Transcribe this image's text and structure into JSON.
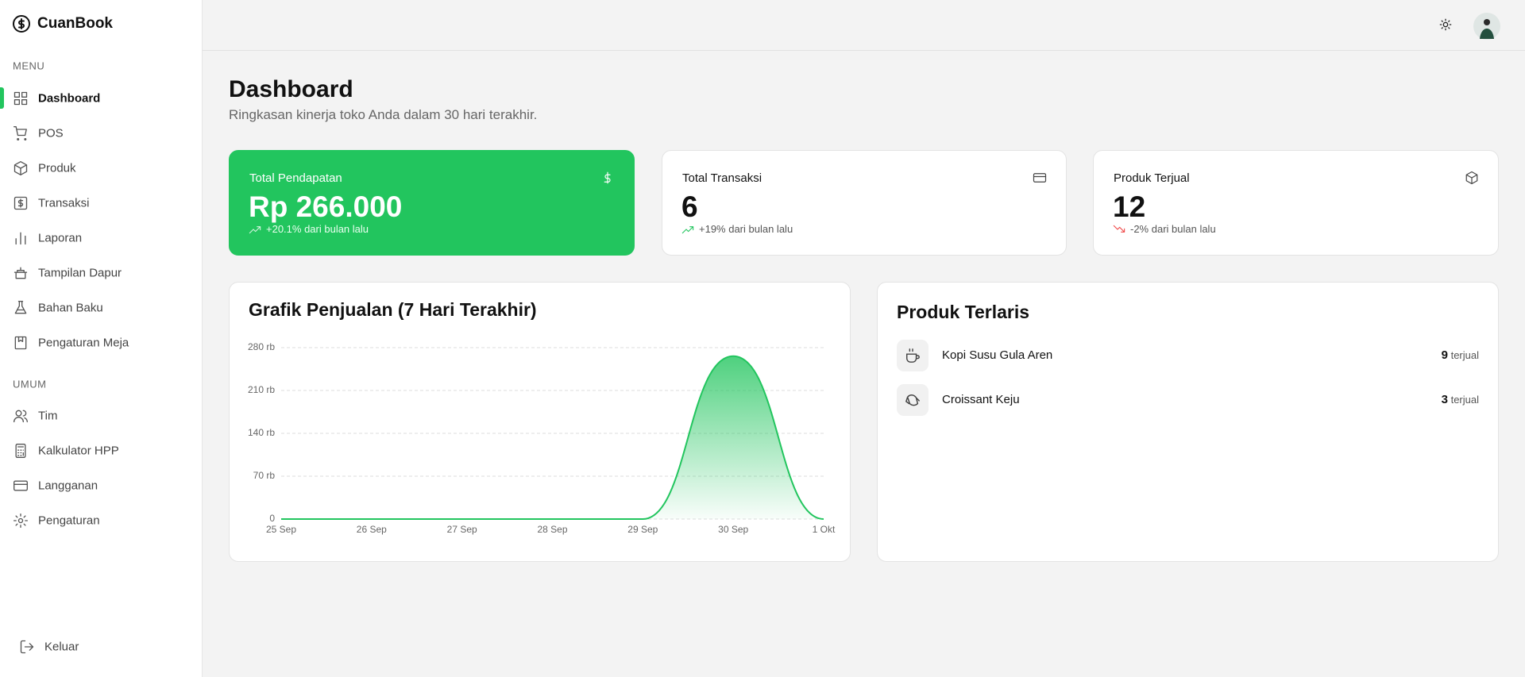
{
  "sidebar": {
    "brand": "CuanBook",
    "menu_heading": "MENU",
    "menu": [
      "Dashboard",
      "POS",
      "Produk",
      "Transaksi",
      "Laporan",
      "Tampilan Dapur",
      "Bahan Baku",
      "Pengaturan Meja"
    ],
    "general_heading": "UMUM",
    "general": [
      "Tim",
      "Kalkulator HPP",
      "Langganan",
      "Pengaturan"
    ],
    "logout": "Keluar"
  },
  "page": {
    "title": "Dashboard",
    "subtitle": "Ringkasan kinerja toko Anda dalam 30 hari terakhir."
  },
  "stats": [
    {
      "label": "Total Pendapatan",
      "value": "Rp 266.000",
      "change": "+20.1% dari bulan lalu"
    },
    {
      "label": "Total Transaksi",
      "value": "6",
      "change": "+19% dari bulan lalu"
    },
    {
      "label": "Produk Terjual",
      "value": "12",
      "change": "-2% dari bulan lalu"
    }
  ],
  "chart_data": {
    "type": "area",
    "title": "Grafik Penjualan (7 Hari Terakhir)",
    "categories": [
      "25 Sep",
      "26 Sep",
      "27 Sep",
      "28 Sep",
      "29 Sep",
      "30 Sep",
      "1 Okt"
    ],
    "values": [
      0,
      0,
      0,
      0,
      0,
      266000,
      0
    ],
    "color": "#22c55e",
    "ylim": [
      0,
      280000
    ],
    "yticks": [
      0,
      {
        "value": 70000,
        "label": "70 rb"
      },
      {
        "value": 140000,
        "label": "140 rb"
      },
      {
        "value": 210000,
        "label": "210 rb"
      },
      {
        "value": 280000,
        "label": "280 rb"
      }
    ],
    "grid": true
  },
  "top_products": {
    "title": "Produk Terlaris",
    "unit": "terjual",
    "items": [
      {
        "name": "Kopi Susu Gula Aren",
        "count": 9
      },
      {
        "name": "Croissant Keju",
        "count": 3
      }
    ]
  }
}
